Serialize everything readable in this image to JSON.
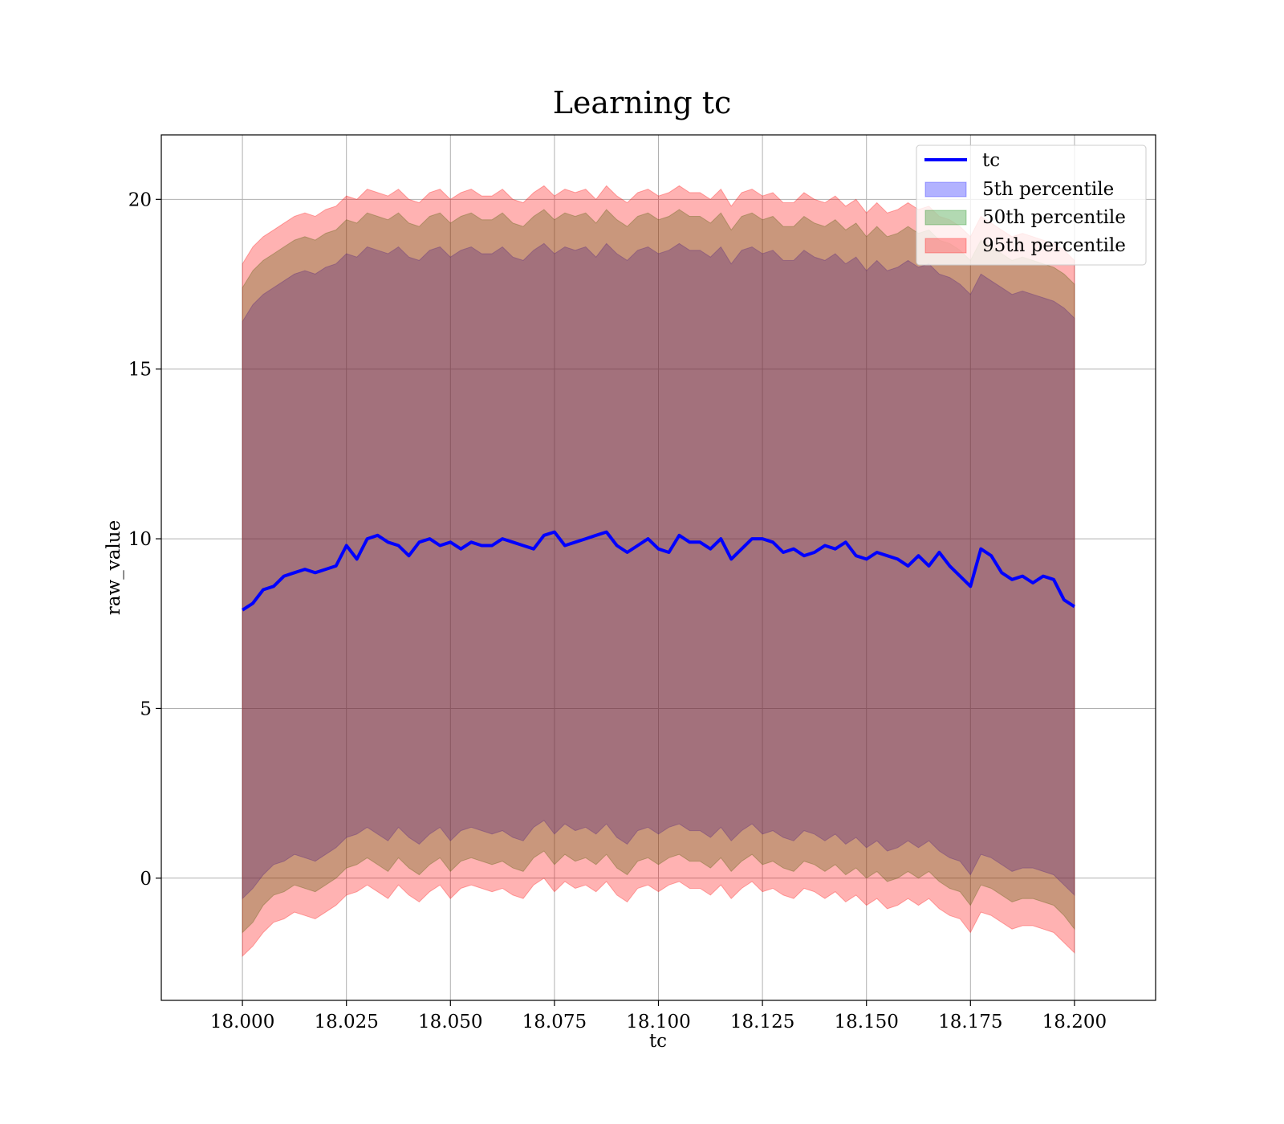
{
  "chart_data": {
    "type": "area",
    "title": "Learning tc",
    "xlabel": "tc",
    "ylabel": "raw_value",
    "xlim": [
      17.9805,
      18.2195
    ],
    "ylim": [
      -3.6,
      21.9
    ],
    "x_ticks": [
      18.0,
      18.025,
      18.05,
      18.075,
      18.1,
      18.125,
      18.15,
      18.175,
      18.2
    ],
    "x_tick_labels": [
      "18.000",
      "18.025",
      "18.050",
      "18.075",
      "18.100",
      "18.125",
      "18.150",
      "18.175",
      "18.200"
    ],
    "y_ticks": [
      0,
      5,
      10,
      15,
      20
    ],
    "y_tick_labels": [
      "0",
      "5",
      "10",
      "15",
      "20"
    ],
    "grid": true,
    "legend_position": "top-right",
    "legend": [
      "tc",
      "5th percentile",
      "50th percentile",
      "95th percentile"
    ],
    "x": [
      18.0,
      18.0025,
      18.005,
      18.0075,
      18.01,
      18.0125,
      18.015,
      18.0175,
      18.02,
      18.0225,
      18.025,
      18.0275,
      18.03,
      18.0325,
      18.035,
      18.0375,
      18.04,
      18.0425,
      18.045,
      18.0475,
      18.05,
      18.0525,
      18.055,
      18.0575,
      18.06,
      18.0625,
      18.065,
      18.0675,
      18.07,
      18.0725,
      18.075,
      18.0775,
      18.08,
      18.0825,
      18.085,
      18.0875,
      18.09,
      18.0925,
      18.095,
      18.0975,
      18.1,
      18.1025,
      18.105,
      18.1075,
      18.11,
      18.1125,
      18.115,
      18.1175,
      18.12,
      18.1225,
      18.125,
      18.1275,
      18.13,
      18.1325,
      18.135,
      18.1375,
      18.14,
      18.1425,
      18.145,
      18.1475,
      18.15,
      18.1525,
      18.155,
      18.1575,
      18.16,
      18.1625,
      18.165,
      18.1675,
      18.17,
      18.1725,
      18.175,
      18.1775,
      18.18,
      18.1825,
      18.185,
      18.1875,
      18.19,
      18.1925,
      18.195,
      18.1975,
      18.2
    ],
    "tc": [
      7.9,
      8.1,
      8.5,
      8.6,
      8.9,
      9.0,
      9.1,
      9.0,
      9.1,
      9.2,
      9.8,
      9.4,
      10.0,
      10.1,
      9.9,
      9.8,
      9.5,
      9.9,
      10.0,
      9.8,
      9.9,
      9.7,
      9.9,
      9.8,
      9.8,
      10.0,
      9.9,
      9.8,
      9.7,
      10.1,
      10.2,
      9.8,
      9.9,
      10.0,
      10.1,
      10.2,
      9.8,
      9.6,
      9.8,
      10.0,
      9.7,
      9.6,
      10.1,
      9.9,
      9.9,
      9.7,
      10.0,
      9.4,
      9.7,
      10.0,
      10.0,
      9.9,
      9.6,
      9.7,
      9.5,
      9.6,
      9.8,
      9.7,
      9.9,
      9.5,
      9.4,
      9.6,
      9.5,
      9.4,
      9.2,
      9.5,
      9.2,
      9.6,
      9.2,
      8.9,
      8.6,
      9.7,
      9.5,
      9.0,
      8.8,
      8.9,
      8.7,
      8.9,
      8.8,
      8.2,
      8.0
    ],
    "series": [
      {
        "name": "5th percentile",
        "color": "#0000ff",
        "lower": [
          -0.6,
          -0.3,
          0.1,
          0.4,
          0.5,
          0.7,
          0.6,
          0.5,
          0.7,
          0.9,
          1.2,
          1.3,
          1.5,
          1.3,
          1.1,
          1.5,
          1.2,
          1.0,
          1.3,
          1.5,
          1.1,
          1.4,
          1.5,
          1.4,
          1.3,
          1.4,
          1.2,
          1.1,
          1.5,
          1.7,
          1.3,
          1.6,
          1.4,
          1.5,
          1.3,
          1.6,
          1.2,
          1.0,
          1.4,
          1.5,
          1.3,
          1.5,
          1.6,
          1.4,
          1.4,
          1.2,
          1.5,
          1.1,
          1.4,
          1.6,
          1.3,
          1.4,
          1.2,
          1.1,
          1.4,
          1.3,
          1.1,
          1.3,
          1.0,
          1.2,
          0.9,
          1.1,
          0.8,
          0.9,
          1.1,
          0.9,
          1.1,
          0.8,
          0.6,
          0.5,
          0.1,
          0.7,
          0.6,
          0.4,
          0.2,
          0.3,
          0.3,
          0.2,
          0.1,
          -0.2,
          -0.5
        ],
        "upper": [
          16.4,
          16.9,
          17.2,
          17.4,
          17.6,
          17.8,
          17.9,
          17.8,
          18.0,
          18.1,
          18.4,
          18.3,
          18.6,
          18.5,
          18.4,
          18.6,
          18.3,
          18.2,
          18.5,
          18.6,
          18.3,
          18.5,
          18.6,
          18.4,
          18.4,
          18.6,
          18.3,
          18.2,
          18.5,
          18.7,
          18.4,
          18.6,
          18.5,
          18.6,
          18.3,
          18.7,
          18.4,
          18.2,
          18.5,
          18.6,
          18.4,
          18.5,
          18.7,
          18.5,
          18.5,
          18.3,
          18.6,
          18.1,
          18.5,
          18.6,
          18.4,
          18.5,
          18.2,
          18.2,
          18.5,
          18.3,
          18.2,
          18.4,
          18.1,
          18.3,
          17.9,
          18.2,
          17.9,
          18.0,
          18.2,
          18.0,
          18.1,
          17.8,
          17.7,
          17.5,
          17.2,
          17.8,
          17.6,
          17.4,
          17.2,
          17.3,
          17.2,
          17.1,
          17.0,
          16.8,
          16.5
        ]
      },
      {
        "name": "50th percentile",
        "color": "#008000",
        "lower": [
          -1.6,
          -1.3,
          -0.8,
          -0.5,
          -0.4,
          -0.2,
          -0.3,
          -0.4,
          -0.2,
          0.0,
          0.3,
          0.4,
          0.6,
          0.4,
          0.2,
          0.6,
          0.3,
          0.1,
          0.4,
          0.6,
          0.2,
          0.5,
          0.6,
          0.5,
          0.4,
          0.5,
          0.3,
          0.2,
          0.6,
          0.8,
          0.4,
          0.7,
          0.5,
          0.6,
          0.4,
          0.7,
          0.3,
          0.1,
          0.5,
          0.6,
          0.4,
          0.6,
          0.7,
          0.5,
          0.5,
          0.3,
          0.6,
          0.2,
          0.5,
          0.7,
          0.4,
          0.5,
          0.3,
          0.2,
          0.5,
          0.4,
          0.2,
          0.4,
          0.1,
          0.3,
          0.0,
          0.2,
          -0.1,
          0.0,
          0.2,
          0.0,
          0.2,
          -0.1,
          -0.3,
          -0.4,
          -0.8,
          -0.2,
          -0.3,
          -0.5,
          -0.7,
          -0.6,
          -0.6,
          -0.7,
          -0.8,
          -1.1,
          -1.5
        ],
        "upper": [
          17.4,
          17.9,
          18.2,
          18.4,
          18.6,
          18.8,
          18.9,
          18.8,
          19.0,
          19.1,
          19.4,
          19.3,
          19.6,
          19.5,
          19.4,
          19.6,
          19.3,
          19.2,
          19.5,
          19.6,
          19.3,
          19.5,
          19.6,
          19.4,
          19.4,
          19.6,
          19.3,
          19.2,
          19.5,
          19.7,
          19.4,
          19.6,
          19.5,
          19.6,
          19.3,
          19.7,
          19.4,
          19.2,
          19.5,
          19.6,
          19.4,
          19.5,
          19.7,
          19.5,
          19.5,
          19.3,
          19.6,
          19.1,
          19.5,
          19.6,
          19.4,
          19.5,
          19.2,
          19.2,
          19.5,
          19.3,
          19.2,
          19.4,
          19.1,
          19.3,
          18.9,
          19.2,
          18.9,
          19.0,
          19.2,
          19.0,
          19.1,
          18.8,
          18.7,
          18.5,
          18.2,
          18.8,
          18.6,
          18.4,
          18.2,
          18.3,
          18.2,
          18.1,
          18.0,
          17.8,
          17.5
        ]
      },
      {
        "name": "95th percentile",
        "color": "#ff0000",
        "lower": [
          -2.3,
          -2.0,
          -1.6,
          -1.3,
          -1.2,
          -1.0,
          -1.1,
          -1.2,
          -1.0,
          -0.8,
          -0.5,
          -0.4,
          -0.2,
          -0.4,
          -0.6,
          -0.2,
          -0.5,
          -0.7,
          -0.4,
          -0.2,
          -0.6,
          -0.3,
          -0.2,
          -0.3,
          -0.4,
          -0.3,
          -0.5,
          -0.6,
          -0.2,
          0.0,
          -0.4,
          -0.1,
          -0.3,
          -0.2,
          -0.4,
          -0.1,
          -0.5,
          -0.7,
          -0.3,
          -0.2,
          -0.4,
          -0.2,
          -0.1,
          -0.3,
          -0.3,
          -0.5,
          -0.2,
          -0.6,
          -0.3,
          -0.1,
          -0.4,
          -0.3,
          -0.5,
          -0.6,
          -0.3,
          -0.4,
          -0.6,
          -0.4,
          -0.7,
          -0.5,
          -0.8,
          -0.6,
          -0.9,
          -0.8,
          -0.6,
          -0.8,
          -0.6,
          -0.9,
          -1.1,
          -1.2,
          -1.6,
          -1.0,
          -1.1,
          -1.3,
          -1.5,
          -1.4,
          -1.4,
          -1.5,
          -1.6,
          -1.9,
          -2.2
        ],
        "upper": [
          18.1,
          18.6,
          18.9,
          19.1,
          19.3,
          19.5,
          19.6,
          19.5,
          19.7,
          19.8,
          20.1,
          20.0,
          20.3,
          20.2,
          20.1,
          20.3,
          20.0,
          19.9,
          20.2,
          20.3,
          20.0,
          20.2,
          20.3,
          20.1,
          20.1,
          20.3,
          20.0,
          19.9,
          20.2,
          20.4,
          20.1,
          20.3,
          20.2,
          20.3,
          20.0,
          20.4,
          20.1,
          19.9,
          20.2,
          20.3,
          20.1,
          20.2,
          20.4,
          20.2,
          20.2,
          20.0,
          20.3,
          19.8,
          20.2,
          20.3,
          20.1,
          20.2,
          19.9,
          19.9,
          20.2,
          20.0,
          19.9,
          20.1,
          19.8,
          20.0,
          19.6,
          19.9,
          19.6,
          19.7,
          19.9,
          19.7,
          19.8,
          19.5,
          19.4,
          19.2,
          18.9,
          19.5,
          19.3,
          19.1,
          18.9,
          19.0,
          18.9,
          18.8,
          18.7,
          18.5,
          18.2
        ]
      }
    ],
    "tc_series": {
      "name": "tc",
      "color": "#0000ff"
    }
  }
}
